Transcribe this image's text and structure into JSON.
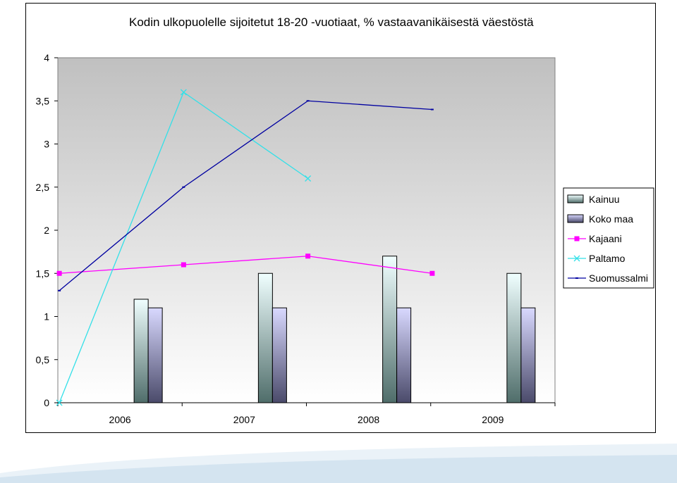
{
  "chart_data": {
    "type": "bar",
    "title": "Kodin ulkopuolelle sijoitetut 18-20 -vuotiaat, % vastaavanikäisestä väestöstä",
    "categories": [
      "2006",
      "2007",
      "2008",
      "2009"
    ],
    "ylim": [
      0,
      4
    ],
    "yticks": [
      "0",
      "0,5",
      "1",
      "1,5",
      "2",
      "2,5",
      "3",
      "3,5",
      "4"
    ],
    "grid": false,
    "legend_position": "right",
    "bar_series": [
      {
        "name": "Kainuu",
        "values": [
          1.2,
          1.5,
          1.7,
          1.5
        ],
        "color_top": "#f0ffff",
        "color_bottom": "#4f6d6a"
      },
      {
        "name": "Koko maa",
        "values": [
          1.1,
          1.1,
          1.1,
          1.1
        ],
        "color_top": "#d9d9ff",
        "color_bottom": "#4a4a6a"
      }
    ],
    "line_series": [
      {
        "name": "Kajaani",
        "values": [
          1.5,
          1.6,
          1.7,
          1.5
        ],
        "color": "#ff00ff",
        "marker": "square"
      },
      {
        "name": "Paltamo",
        "values": [
          0,
          3.6,
          2.6,
          null
        ],
        "color": "#33e0e8",
        "marker": "x"
      },
      {
        "name": "Suomussalmi",
        "values": [
          1.3,
          2.5,
          3.5,
          3.4
        ],
        "color": "#0000a0",
        "marker": "dash"
      }
    ]
  }
}
